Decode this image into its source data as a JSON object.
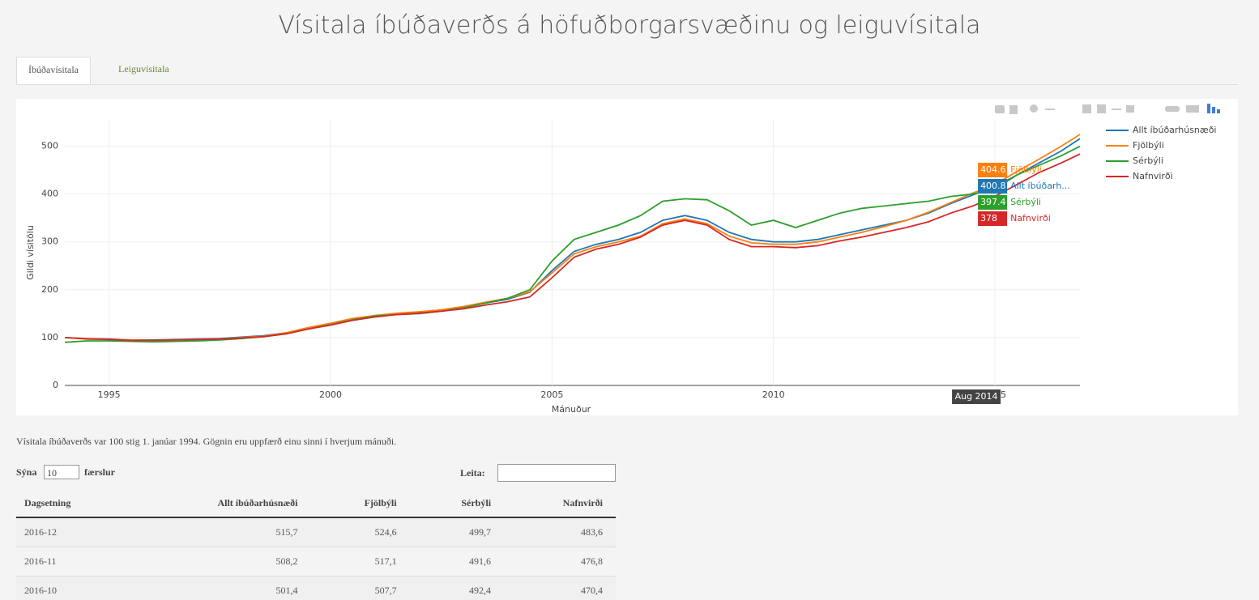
{
  "header": {
    "title": "Vísitala íbúðaverðs á höfuðborgarsvæðinu og leiguvísitala"
  },
  "tabs": [
    "Íbúðavísitala",
    "Leiguvísitala"
  ],
  "chart_data": {
    "type": "line",
    "y_label": "Gildi vísitölu",
    "x_label": "Mánuður",
    "x": [
      1994,
      1994.5,
      1995,
      1995.5,
      1996,
      1996.5,
      1997,
      1997.5,
      1998,
      1998.5,
      1999,
      1999.5,
      2000,
      2000.5,
      2001,
      2001.5,
      2002,
      2002.5,
      2003,
      2003.5,
      2004,
      2004.5,
      2005,
      2005.5,
      2006,
      2006.5,
      2007,
      2007.5,
      2008,
      2008.5,
      2009,
      2009.5,
      2010,
      2010.5,
      2011,
      2011.5,
      2012,
      2012.5,
      2013,
      2013.5,
      2014,
      2014.5,
      2015,
      2015.5,
      2016,
      2016.5,
      2016.92
    ],
    "series": [
      {
        "name": "Allt íbúðarhúsnæði",
        "color": "#1f77b4",
        "values": [
          100,
          98,
          97,
          95,
          95,
          96,
          97,
          98,
          101,
          104,
          110,
          120,
          128,
          138,
          145,
          150,
          153,
          157,
          163,
          172,
          180,
          195,
          240,
          280,
          295,
          305,
          320,
          345,
          355,
          345,
          320,
          305,
          300,
          300,
          305,
          315,
          325,
          335,
          345,
          360,
          380,
          398,
          415,
          440,
          465,
          490,
          515.7
        ]
      },
      {
        "name": "Fjölbýli",
        "color": "#ff7f0e",
        "values": [
          100,
          98,
          96,
          95,
          94,
          95,
          96,
          97,
          100,
          103,
          110,
          121,
          130,
          140,
          146,
          151,
          154,
          158,
          165,
          174,
          182,
          196,
          235,
          275,
          290,
          300,
          312,
          338,
          348,
          338,
          312,
          298,
          295,
          295,
          300,
          310,
          320,
          332,
          345,
          362,
          382,
          402,
          420,
          447,
          473,
          500,
          524.6
        ]
      },
      {
        "name": "Sérbýli",
        "color": "#2ca02c",
        "values": [
          90,
          93,
          93,
          92,
          91,
          92,
          93,
          95,
          98,
          102,
          108,
          118,
          127,
          137,
          145,
          148,
          150,
          155,
          162,
          172,
          182,
          200,
          260,
          305,
          320,
          335,
          355,
          385,
          390,
          388,
          365,
          335,
          345,
          330,
          345,
          360,
          370,
          375,
          380,
          385,
          395,
          400,
          410,
          440,
          460,
          480,
          499.7
        ]
      },
      {
        "name": "Nafnvirði",
        "color": "#d62728",
        "values": [
          100,
          97,
          96,
          94,
          94,
          95,
          96,
          97,
          99,
          102,
          108,
          118,
          126,
          136,
          143,
          148,
          151,
          155,
          160,
          168,
          175,
          185,
          225,
          268,
          285,
          295,
          310,
          335,
          345,
          335,
          305,
          290,
          290,
          288,
          292,
          302,
          310,
          320,
          330,
          342,
          360,
          375,
          395,
          420,
          445,
          465,
          483.6
        ]
      }
    ],
    "xlim": [
      1994,
      2016.92
    ],
    "xticks": [
      1995,
      2000,
      2005,
      2010,
      2015
    ],
    "ylim": [
      0,
      555
    ],
    "yticks": [
      0,
      100,
      200,
      300,
      400,
      500
    ],
    "grid": true,
    "legend": "right",
    "hover": {
      "x": {
        "value": 2014.58,
        "label": "Aug 2014"
      },
      "items": [
        {
          "value": 404.6,
          "name": "Fjölbýli",
          "color": "#ff7f0e"
        },
        {
          "value": 400.8,
          "name": "Allt íbúðarh...",
          "color": "#1f77b4"
        },
        {
          "value": 397.4,
          "name": "Sérbýli",
          "color": "#2ca02c"
        },
        {
          "value": 378,
          "name": "Nafnvirði",
          "color": "#d62728"
        }
      ]
    }
  },
  "note": "Vísitala íbúðaverðs var 100 stig 1. janúar 1994. Gögnin eru uppfærð einu sinni í hverjum mánuði.",
  "controls": {
    "show": "Sýna",
    "length": "10",
    "entries": "færslur",
    "search": "Leita:"
  },
  "table": {
    "columns": [
      "Dagsetning",
      "Allt íbúðarhúsnæði",
      "Fjölbýli",
      "Sérbýli",
      "Nafnvirði"
    ],
    "rows": [
      [
        "2016-12",
        "515,7",
        "524,6",
        "499,7",
        "483,6"
      ],
      [
        "2016-11",
        "508,2",
        "517,1",
        "491,6",
        "476,8"
      ],
      [
        "2016-10",
        "501,4",
        "507,7",
        "492,4",
        "470,4"
      ]
    ]
  }
}
